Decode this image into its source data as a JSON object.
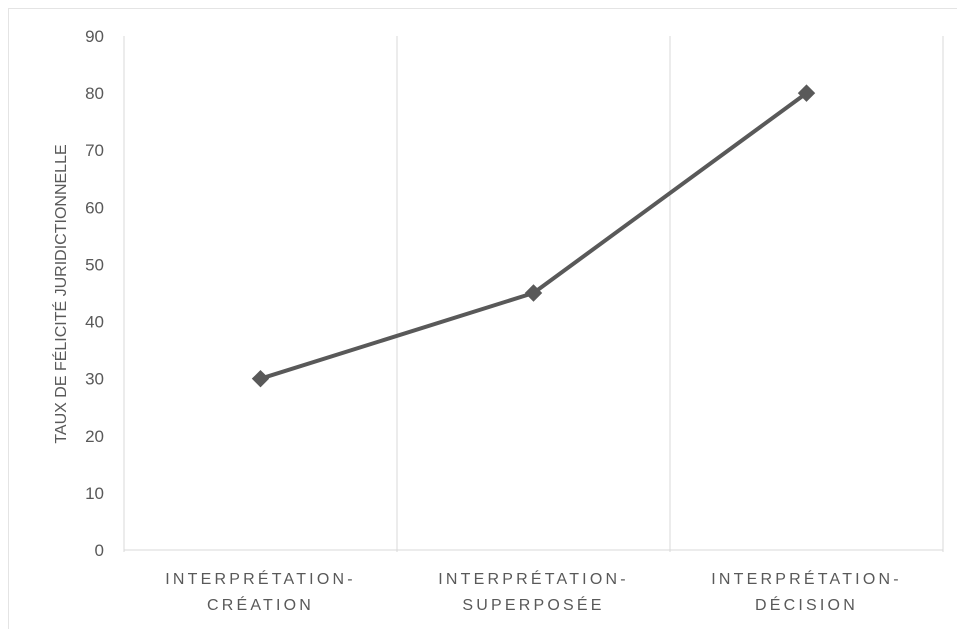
{
  "chart_data": {
    "type": "line",
    "title": "",
    "xlabel": "",
    "ylabel": "TAUX DE FÉLICITÉ JURIDICTIONNELLE",
    "ylim": [
      0,
      90
    ],
    "yticks": [
      0,
      10,
      20,
      30,
      40,
      50,
      60,
      70,
      80,
      90
    ],
    "categories": [
      [
        "INTERPRÉTATION-",
        "CRÉATION"
      ],
      [
        "INTERPRÉTATION-",
        "SUPERPOSÉE"
      ],
      [
        "INTERPRÉTATION-",
        "DÉCISION"
      ]
    ],
    "series": [
      {
        "values": [
          30,
          45,
          80
        ],
        "color": "#595959",
        "marker": "diamond"
      }
    ],
    "grid": "vertical-category-separators",
    "legend": "none"
  }
}
